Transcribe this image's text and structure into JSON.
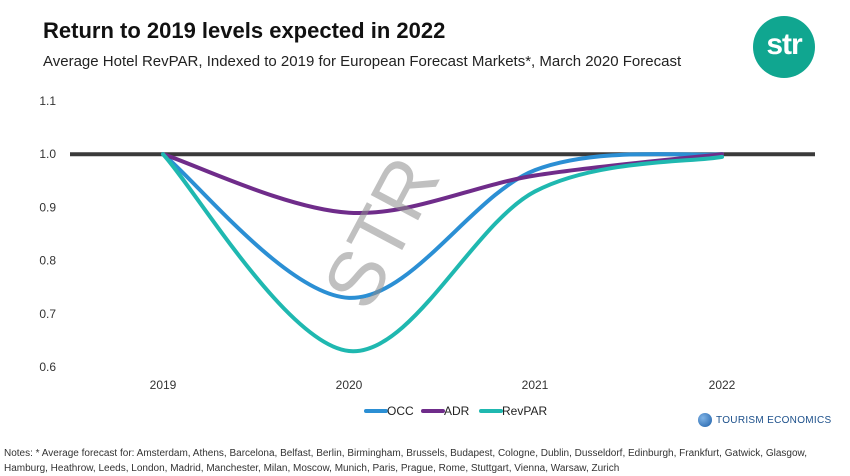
{
  "header": {
    "title": "Return to 2019 levels expected in 2022",
    "subtitle": "Average Hotel RevPAR, Indexed to 2019 for European Forecast Markets*, March 2020 Forecast",
    "logo_text": "str"
  },
  "watermark_text": "STR",
  "footer": {
    "brand_text": "TOURISM ECONOMICS",
    "notes": "Notes: * Average forecast for: Amsterdam, Athens, Barcelona, Belfast, Berlin, Birmingham, Brussels, Budapest, Cologne, Dublin, Dusseldorf, Edinburgh, Frankfurt, Gatwick, Glasgow, Hamburg, Heathrow, Leeds, London, Madrid, Manchester, Milan, Moscow, Munich, Paris, Prague, Rome, Stuttgart, Vienna, Warsaw, Zurich"
  },
  "colors": {
    "occ": "#2b8fd4",
    "adr": "#6f2c8a",
    "revpar": "#1fb8b0",
    "baseline": "#3a3a3a",
    "brand": "#10a690"
  },
  "chart_data": {
    "type": "line",
    "x": [
      "2019",
      "2020",
      "2021",
      "2022"
    ],
    "y_ticks": [
      "1.1",
      "1.0",
      "0.9",
      "0.8",
      "0.7",
      "0.6"
    ],
    "ylim": [
      0.6,
      1.1
    ],
    "baseline": 1.0,
    "grid": false,
    "legend_position": "bottom",
    "series": [
      {
        "name": "OCC",
        "color": "#2b8fd4",
        "values": [
          1.0,
          0.73,
          0.97,
          1.0
        ]
      },
      {
        "name": "ADR",
        "color": "#6f2c8a",
        "values": [
          1.0,
          0.89,
          0.96,
          1.0
        ]
      },
      {
        "name": "RevPAR",
        "color": "#1fb8b0",
        "values": [
          1.0,
          0.63,
          0.93,
          0.995
        ]
      }
    ]
  }
}
